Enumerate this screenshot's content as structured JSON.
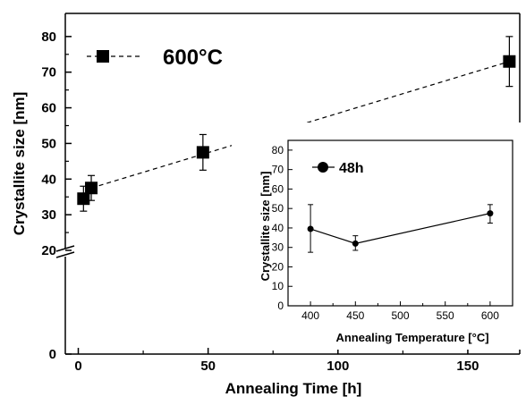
{
  "chart_data": [
    {
      "type": "scatter",
      "xlabel": "Annealing Time [h]",
      "ylabel": "Crystallite size [nm]",
      "xlim": [
        -5,
        170
      ],
      "ylim": [
        0,
        85
      ],
      "axis_break": [
        0,
        20
      ],
      "x_ticks": [
        "0",
        "50",
        "100",
        "150"
      ],
      "y_ticks": [
        "0",
        "20",
        "30",
        "40",
        "50",
        "60",
        "70",
        "80"
      ],
      "grid": false,
      "legend_position": "top-left",
      "series": [
        {
          "name": "600°C",
          "marker": "square",
          "line": "dashed",
          "color": "#000000",
          "x": [
            2,
            5,
            48,
            166
          ],
          "y": [
            34.5,
            37.5,
            47.5,
            73
          ],
          "yerr": [
            3.5,
            3.5,
            5,
            7
          ]
        }
      ],
      "fit_line": {
        "x": [
          5,
          166
        ],
        "y": [
          37.5,
          73
        ]
      }
    },
    {
      "type": "line",
      "xlabel": "Annealing Temperature [°C]",
      "ylabel": "Crystallite size [nm]",
      "xlim": [
        375,
        625
      ],
      "ylim": [
        0,
        85
      ],
      "x_ticks": [
        "400",
        "450",
        "500",
        "550",
        "600"
      ],
      "y_ticks": [
        "0",
        "10",
        "20",
        "30",
        "40",
        "50",
        "60",
        "70",
        "80"
      ],
      "legend_position": "top-left",
      "series": [
        {
          "name": "48h",
          "marker": "circle",
          "color": "#000000",
          "x": [
            400,
            450,
            600
          ],
          "y": [
            39.5,
            32,
            47.5
          ],
          "yerr_low": [
            12,
            3.5,
            5
          ],
          "yerr_high": [
            12.5,
            4,
            4.5
          ]
        }
      ]
    }
  ]
}
